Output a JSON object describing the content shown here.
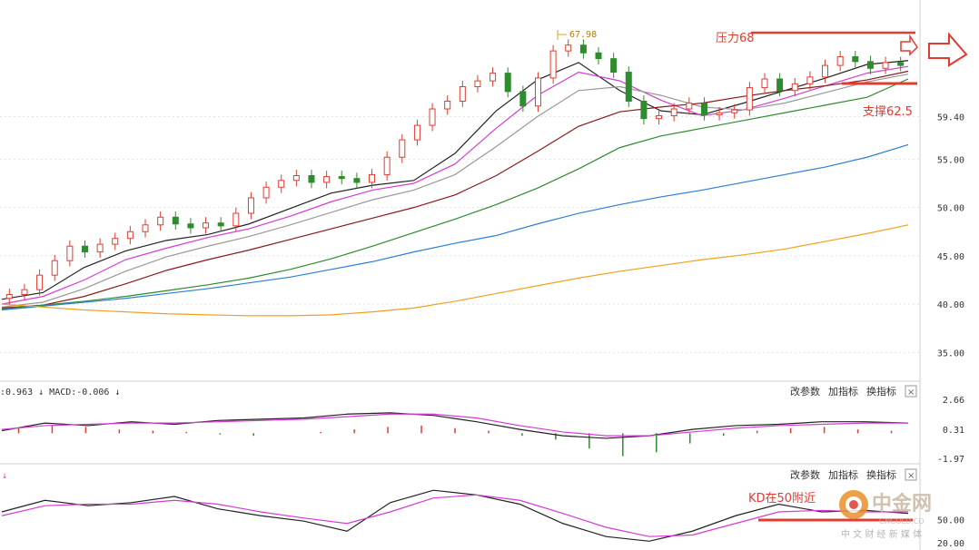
{
  "chart_data": [
    {
      "type": "candlestick",
      "title": "",
      "ylim": [
        32.5,
        71
      ],
      "yticks": [
        "59.40",
        "55.00",
        "50.00",
        "45.00",
        "40.00",
        "35.00"
      ],
      "high_marker": "67.98",
      "ma_series": [
        {
          "color": "#222222",
          "values": [
            40.5,
            41.2,
            43.8,
            45.5,
            46.6,
            47.2,
            48.3,
            49.9,
            51.5,
            52.3,
            52.8,
            55.6,
            60.0,
            63.2,
            65.0,
            62.1,
            60.0,
            59.6,
            60.8,
            62.1,
            63.4,
            64.8,
            65.2
          ]
        },
        {
          "color": "#d63bd6",
          "values": [
            40.0,
            40.8,
            42.5,
            44.6,
            45.8,
            46.9,
            47.8,
            49.1,
            50.6,
            51.8,
            52.5,
            54.5,
            58.2,
            61.6,
            64.0,
            63.1,
            61.1,
            59.5,
            60.1,
            61.3,
            62.6,
            63.9,
            64.6
          ]
        },
        {
          "color": "#999999",
          "values": [
            39.7,
            40.2,
            41.6,
            43.4,
            44.9,
            46.0,
            47.0,
            48.2,
            49.5,
            50.8,
            51.8,
            53.4,
            56.3,
            59.4,
            62.1,
            62.5,
            61.6,
            60.4,
            60.1,
            60.8,
            61.9,
            63.0,
            63.8
          ]
        },
        {
          "color": "#8b1a1a",
          "values": [
            39.6,
            39.9,
            40.8,
            42.1,
            43.5,
            44.6,
            45.6,
            46.7,
            47.8,
            48.9,
            50.0,
            51.3,
            53.3,
            55.8,
            58.4,
            59.9,
            60.4,
            60.8,
            61.5,
            62.1,
            62.6,
            63.2,
            64.1
          ]
        },
        {
          "color": "#2e8b2e",
          "values": [
            39.5,
            39.9,
            40.3,
            40.8,
            41.4,
            42.0,
            42.7,
            43.6,
            44.7,
            46.0,
            47.4,
            48.8,
            50.3,
            52.0,
            54.0,
            56.2,
            57.4,
            58.2,
            59.0,
            59.8,
            60.6,
            61.4,
            63.3
          ]
        },
        {
          "color": "#2b7fd6",
          "values": [
            39.4,
            39.8,
            40.2,
            40.6,
            41.1,
            41.6,
            42.2,
            42.8,
            43.6,
            44.4,
            45.4,
            46.3,
            47.1,
            48.3,
            49.4,
            50.3,
            51.1,
            51.8,
            52.6,
            53.4,
            54.2,
            55.2,
            56.5
          ]
        },
        {
          "color": "#f0a020",
          "values": [
            40.0,
            39.7,
            39.4,
            39.2,
            39.0,
            38.9,
            38.8,
            38.8,
            38.9,
            39.2,
            39.6,
            40.3,
            41.1,
            41.9,
            42.7,
            43.4,
            44.0,
            44.6,
            45.1,
            45.7,
            46.5,
            47.3,
            48.2
          ]
        }
      ],
      "candle_closes": [
        41.0,
        41.5,
        43.0,
        44.5,
        46.0,
        45.4,
        46.2,
        46.8,
        47.5,
        48.2,
        49.0,
        48.3,
        47.9,
        48.4,
        48.1,
        49.4,
        51.0,
        52.1,
        52.8,
        53.3,
        52.6,
        53.2,
        53.0,
        52.6,
        53.4,
        55.2,
        57.0,
        58.5,
        60.2,
        61.0,
        62.5,
        63.1,
        63.9,
        62.0,
        60.5,
        63.4,
        66.2,
        66.8,
        66.0,
        65.4,
        64.0,
        61.0,
        59.2,
        59.5,
        60.2,
        60.8,
        59.6,
        59.8,
        60.1,
        62.4,
        63.3,
        62.1,
        62.8,
        63.5,
        64.7,
        65.6,
        65.1,
        64.4,
        65.0,
        64.7
      ],
      "annotations": [
        "压力68",
        "支撑62.5"
      ]
    },
    {
      "type": "line",
      "title": ":0.963 ↓ MACD:-0.006 ↓",
      "ylim": [
        -1.97,
        2.66
      ],
      "yticks": [
        "2.66",
        "0.31",
        "-1.97"
      ],
      "series": [
        {
          "color": "#222222",
          "values": [
            0.2,
            0.8,
            0.6,
            0.9,
            0.7,
            1.0,
            1.1,
            1.2,
            1.5,
            1.6,
            1.4,
            0.9,
            0.3,
            -0.2,
            -0.4,
            -0.2,
            0.3,
            0.6,
            0.7,
            0.9,
            0.9,
            0.8
          ]
        },
        {
          "color": "#d63bd6",
          "values": [
            0.3,
            0.6,
            0.7,
            0.8,
            0.8,
            0.9,
            1.0,
            1.1,
            1.3,
            1.5,
            1.5,
            1.2,
            0.6,
            0.1,
            -0.2,
            -0.2,
            0.1,
            0.4,
            0.6,
            0.7,
            0.8,
            0.8
          ]
        }
      ],
      "histogram": [
        0.4,
        0.6,
        0.5,
        0.3,
        0.2,
        0.1,
        -0.1,
        -0.2,
        0.0,
        0.1,
        0.3,
        0.5,
        0.6,
        0.4,
        0.2,
        -0.2,
        -0.5,
        -1.2,
        -1.8,
        -1.5,
        -0.8,
        -0.2,
        0.2,
        0.4,
        0.5,
        0.3,
        0.2
      ]
    },
    {
      "type": "line",
      "title": "↓",
      "ylim": [
        20.0,
        100.0
      ],
      "yticks": [
        "50.00",
        "20.00"
      ],
      "series": [
        {
          "color": "#222222",
          "values": [
            60,
            75,
            68,
            72,
            80,
            64,
            55,
            48,
            35,
            72,
            88,
            82,
            70,
            45,
            28,
            22,
            35,
            55,
            70,
            60,
            62,
            58
          ]
        },
        {
          "color": "#d63bd6",
          "values": [
            55,
            68,
            70,
            70,
            75,
            70,
            60,
            52,
            45,
            60,
            78,
            82,
            75,
            58,
            40,
            28,
            30,
            45,
            60,
            62,
            60,
            60
          ]
        }
      ],
      "annotations": [
        "KD在50附近"
      ]
    }
  ],
  "panel_buttons": {
    "modify_params": "改参数",
    "add_indicator": "加指标",
    "switch_indicator": "换指标",
    "close": "×"
  },
  "watermark": {
    "brand": "中金网",
    "sub": "中 文 财 经 新 媒 体",
    "url": "GNGOLD.CO"
  },
  "colors": {
    "up": "#e03c31",
    "down": "#2e8b2e",
    "annotation": "#e03c31",
    "grid": "#cfcfcf"
  }
}
